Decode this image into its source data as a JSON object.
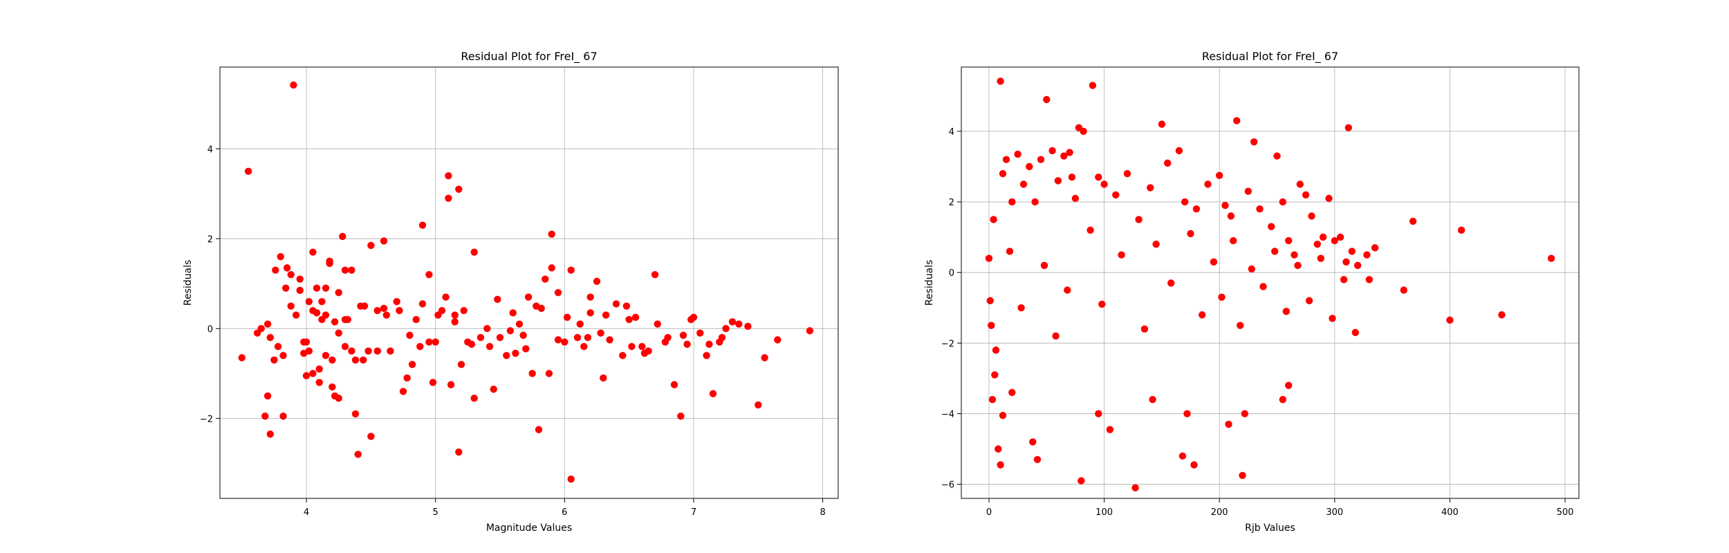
{
  "chart_data": [
    {
      "type": "scatter",
      "title": "Residual Plot for FreI_ 67",
      "xlabel": "Magnitude Values",
      "ylabel": "Residuals",
      "xlim": [
        3.33,
        8.12
      ],
      "ylim": [
        -3.78,
        5.82
      ],
      "xticks": [
        4,
        5,
        6,
        7,
        8
      ],
      "yticks": [
        -2,
        0,
        2,
        4
      ],
      "grid": true,
      "marker_color": "#ff0000",
      "x": [
        3.55,
        3.9,
        3.5,
        3.72,
        3.68,
        3.7,
        3.75,
        3.8,
        3.82,
        3.85,
        3.88,
        3.92,
        3.95,
        3.98,
        4.02,
        4.05,
        4.08,
        4.1,
        4.12,
        4.15,
        4.18,
        4.2,
        4.22,
        4.25,
        4.28,
        4.3,
        4.32,
        4.35,
        4.38,
        4.4,
        4.45,
        4.5,
        4.55,
        4.6,
        4.65,
        4.7,
        4.75,
        4.8,
        4.85,
        4.9,
        4.95,
        5.0,
        5.05,
        5.1,
        5.1,
        5.15,
        5.2,
        5.25,
        5.3,
        5.35,
        5.4,
        5.45,
        5.5,
        5.55,
        5.6,
        5.65,
        5.7,
        5.75,
        5.8,
        5.85,
        5.9,
        5.95,
        6.0,
        6.05,
        6.1,
        6.15,
        6.2,
        6.25,
        6.3,
        6.35,
        6.4,
        6.45,
        6.5,
        6.55,
        6.6,
        6.65,
        6.7,
        6.8,
        6.85,
        6.9,
        6.95,
        7.0,
        7.05,
        7.1,
        7.15,
        7.2,
        7.25,
        7.3,
        7.35,
        7.5,
        7.55,
        7.65,
        7.9,
        3.65,
        3.62,
        3.7,
        3.72,
        3.78,
        3.84,
        4.0,
        4.05,
        4.1,
        4.15,
        4.2,
        4.25,
        4.3,
        4.38,
        4.42,
        4.5,
        4.9,
        5.08,
        5.12,
        5.18,
        5.3,
        5.78,
        5.9,
        6.05,
        6.2,
        5.18,
        4.88,
        4.6,
        4.48,
        4.25,
        4.12,
        4.0,
        3.95,
        3.88,
        3.82,
        4.05,
        4.15,
        4.35,
        4.55,
        4.78,
        4.95,
        5.02,
        5.22,
        5.42,
        5.58,
        5.68,
        5.82,
        5.95,
        6.12,
        6.28,
        6.48,
        6.62,
        6.78,
        6.98,
        7.12,
        7.22,
        7.42,
        4.3,
        4.02,
        4.18,
        3.98,
        3.76,
        4.08,
        4.22,
        4.44,
        4.62,
        4.72,
        4.82,
        4.98,
        5.15,
        5.28,
        5.48,
        5.62,
        5.72,
        5.88,
        6.02,
        6.18,
        6.32,
        6.52,
        6.72,
        6.92
      ],
      "y": [
        3.5,
        5.42,
        -0.65,
        -2.35,
        -1.95,
        -1.5,
        -0.7,
        1.6,
        -1.95,
        1.35,
        0.5,
        0.3,
        1.1,
        -0.3,
        0.6,
        1.7,
        0.9,
        -0.9,
        0.6,
        0.3,
        1.5,
        -0.7,
        -1.5,
        0.8,
        2.05,
        -0.4,
        0.2,
        1.3,
        -1.9,
        -2.8,
        0.5,
        1.85,
        0.4,
        1.95,
        -0.5,
        0.6,
        -1.4,
        -0.15,
        0.2,
        2.3,
        1.2,
        -0.3,
        0.4,
        3.4,
        2.9,
        0.3,
        -0.8,
        -0.3,
        -1.55,
        -0.2,
        0.0,
        -1.35,
        -0.2,
        -0.6,
        0.35,
        0.1,
        -0.45,
        -1.0,
        -2.25,
        1.1,
        2.1,
        0.8,
        -0.3,
        -3.35,
        -0.2,
        -0.4,
        0.7,
        1.05,
        -1.1,
        -0.25,
        0.55,
        -0.6,
        0.2,
        0.25,
        -0.4,
        -0.5,
        1.2,
        -0.2,
        -1.25,
        -1.95,
        -0.35,
        0.25,
        -0.1,
        -0.6,
        -1.45,
        -0.3,
        0.0,
        0.15,
        0.1,
        -1.7,
        -0.65,
        -0.25,
        -0.05,
        0.0,
        -0.1,
        0.1,
        -0.2,
        -0.4,
        0.9,
        -1.05,
        0.4,
        -1.2,
        -0.6,
        -1.3,
        -1.55,
        1.3,
        -0.7,
        0.5,
        -2.4,
        0.55,
        0.7,
        -1.25,
        3.1,
        1.7,
        0.5,
        1.35,
        1.3,
        0.35,
        -2.75,
        -0.4,
        0.45,
        -0.5,
        -0.1,
        0.2,
        -0.3,
        0.85,
        1.2,
        -0.6,
        -1.0,
        0.9,
        -0.5,
        -0.5,
        -1.1,
        -0.3,
        0.3,
        0.4,
        -0.4,
        -0.05,
        -0.15,
        0.45,
        -0.25,
        0.1,
        -0.1,
        0.5,
        -0.55,
        -0.3,
        0.2,
        -0.35,
        -0.2,
        0.05,
        0.2,
        -0.5,
        1.45,
        -0.55,
        1.3,
        0.35,
        0.15,
        -0.7,
        0.3,
        0.4,
        -0.8,
        -1.2,
        0.15,
        -0.35,
        0.65,
        -0.55,
        0.7,
        -1.0,
        0.25,
        -0.2,
        0.3,
        -0.4,
        0.1,
        -0.15
      ]
    },
    {
      "type": "scatter",
      "title": "Residual Plot for FreI_ 67",
      "xlabel": "Rjb Values",
      "ylabel": "Residuals",
      "xlim": [
        -24,
        512
      ],
      "ylim": [
        -6.4,
        5.82
      ],
      "xticks": [
        0,
        100,
        200,
        300,
        400,
        500
      ],
      "yticks": [
        -6,
        -4,
        -2,
        0,
        2,
        4
      ],
      "grid": true,
      "marker_color": "#ff0000",
      "x": [
        10,
        50,
        90,
        78,
        82,
        150,
        165,
        215,
        230,
        250,
        312,
        12,
        15,
        20,
        25,
        30,
        35,
        40,
        45,
        55,
        60,
        65,
        70,
        72,
        75,
        95,
        100,
        110,
        120,
        130,
        140,
        155,
        170,
        180,
        190,
        200,
        205,
        210,
        225,
        235,
        245,
        255,
        260,
        265,
        270,
        275,
        280,
        285,
        290,
        295,
        300,
        305,
        310,
        315,
        320,
        330,
        335,
        360,
        368,
        400,
        410,
        445,
        488,
        3,
        8,
        10,
        12,
        20,
        38,
        42,
        80,
        95,
        105,
        127,
        142,
        168,
        172,
        178,
        208,
        220,
        222,
        255,
        260,
        5,
        2,
        0,
        1,
        4,
        6,
        18,
        28,
        48,
        58,
        68,
        88,
        98,
        115,
        135,
        145,
        158,
        175,
        185,
        195,
        202,
        212,
        218,
        228,
        238,
        248,
        258,
        268,
        278,
        288,
        298,
        308,
        318,
        328
      ],
      "y": [
        5.42,
        4.9,
        5.3,
        4.1,
        4.0,
        4.2,
        3.45,
        4.3,
        3.7,
        3.3,
        4.1,
        2.8,
        3.2,
        2.0,
        3.35,
        2.5,
        3.0,
        2.0,
        3.2,
        3.45,
        2.6,
        3.3,
        3.4,
        2.7,
        2.1,
        2.7,
        2.5,
        2.2,
        2.8,
        1.5,
        2.4,
        3.1,
        2.0,
        1.8,
        2.5,
        2.75,
        1.9,
        1.6,
        2.3,
        1.8,
        1.3,
        2.0,
        0.9,
        0.5,
        2.5,
        2.2,
        1.6,
        0.8,
        1.0,
        2.1,
        0.9,
        1.0,
        0.3,
        0.6,
        0.2,
        -0.2,
        0.7,
        -0.5,
        1.45,
        -1.35,
        1.2,
        -1.2,
        0.4,
        -3.6,
        -5.0,
        -5.45,
        -4.05,
        -3.4,
        -4.8,
        -5.3,
        -5.9,
        -4.0,
        -4.45,
        -6.1,
        -3.6,
        -5.2,
        -4.0,
        -5.45,
        -4.3,
        -5.75,
        -4.0,
        -3.6,
        -3.2,
        -2.9,
        -1.5,
        0.4,
        -0.8,
        1.5,
        -2.2,
        0.6,
        -1.0,
        0.2,
        -1.8,
        -0.5,
        1.2,
        -0.9,
        0.5,
        -1.6,
        0.8,
        -0.3,
        1.1,
        -1.2,
        0.3,
        -0.7,
        0.9,
        -1.5,
        0.1,
        -0.4,
        0.6,
        -1.1,
        0.2,
        -0.8,
        0.4,
        -1.3,
        -0.2,
        -1.7,
        0.5
      ]
    }
  ]
}
